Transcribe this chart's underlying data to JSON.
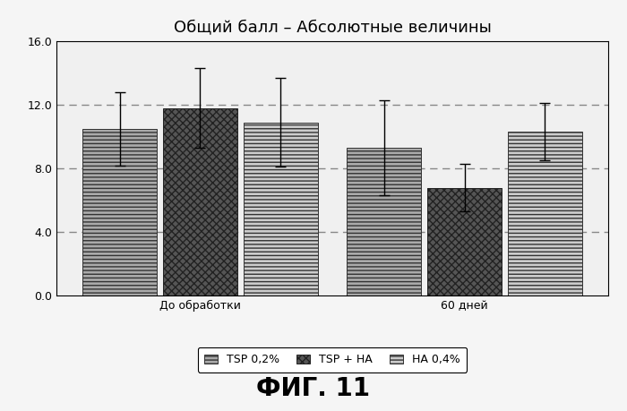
{
  "title": "Общий балл – Абсолютные величины",
  "groups": [
    "До обработки",
    "60 дней"
  ],
  "series": [
    {
      "label": "TSP 0,2%",
      "values": [
        10.5,
        9.3
      ],
      "errors": [
        2.3,
        3.0
      ],
      "hatch": "----",
      "facecolor": "#aaaaaa",
      "edgecolor": "#333333"
    },
    {
      "label": "TSP + HA",
      "values": [
        11.8,
        6.8
      ],
      "errors": [
        2.5,
        1.5
      ],
      "hatch": "xxxx",
      "facecolor": "#555555",
      "edgecolor": "#222222"
    },
    {
      "label": "HA 0,4%",
      "values": [
        10.9,
        10.3
      ],
      "errors": [
        2.8,
        1.8
      ],
      "hatch": "----",
      "facecolor": "#cccccc",
      "edgecolor": "#333333"
    }
  ],
  "ylim": [
    0,
    16.0
  ],
  "yticks": [
    0.0,
    4.0,
    8.0,
    12.0,
    16.0
  ],
  "grid_lines": [
    4.0,
    8.0,
    12.0
  ],
  "bar_width": 0.13,
  "group_centers": [
    0.27,
    0.73
  ],
  "xlim": [
    0.02,
    0.98
  ],
  "background_color": "#f5f5f5",
  "plot_bg_color": "#f0f0f0",
  "fig_text": "ФИГ. 11",
  "title_fontsize": 13,
  "axis_fontsize": 9,
  "legend_fontsize": 9,
  "figtext_fontsize": 20
}
